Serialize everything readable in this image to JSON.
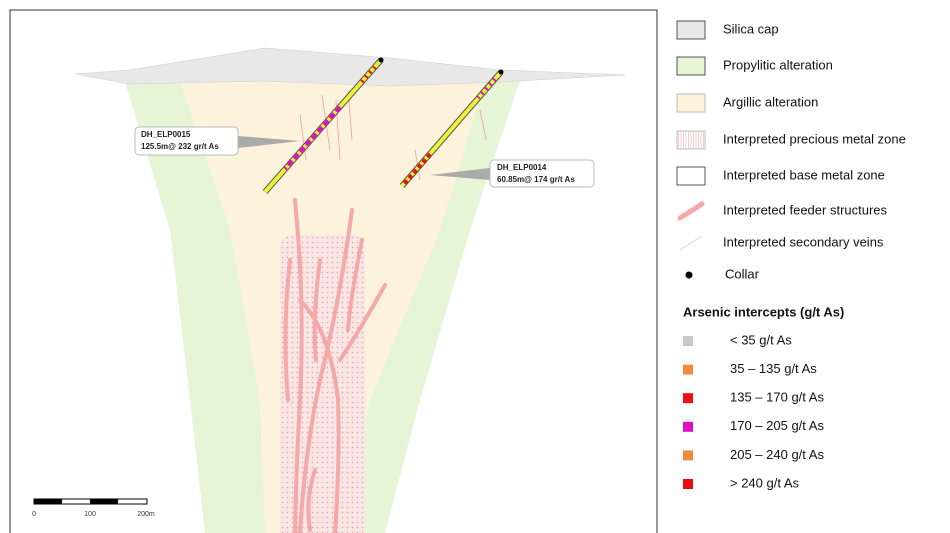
{
  "section": {
    "callouts": [
      {
        "hole": "DH_ELP0015",
        "intercept": "125.5m@ 232 gr/t As"
      },
      {
        "hole": "DH_ELP0014",
        "intercept": "60.85m@ 174 gr/t As"
      }
    ],
    "scale_bar": [
      "0",
      "100",
      "200m"
    ]
  },
  "legend": {
    "items": [
      "Silica cap",
      "Propylitic alteration",
      "Argillic alteration",
      "Interpreted precious metal zone",
      "Interpreted base metal zone",
      "Interpreted feeder structures",
      "Interpreted secondary veins",
      "Collar"
    ],
    "intercepts_title": "Arsenic intercepts (g/t As)",
    "classes": [
      {
        "label": "< 35 g/t As",
        "color": "#c8c8c8"
      },
      {
        "label": "35 – 135 g/t As",
        "color": "#f28a3a"
      },
      {
        "label": "135 – 170 g/t As",
        "color": "#e81010"
      },
      {
        "label": "170 – 205 g/t As",
        "color": "#e010c0"
      },
      {
        "label": "205 – 240 g/t As",
        "color": "#f28a3a"
      },
      {
        "label": "> 240 g/t As",
        "color": "#e81010"
      }
    ]
  }
}
